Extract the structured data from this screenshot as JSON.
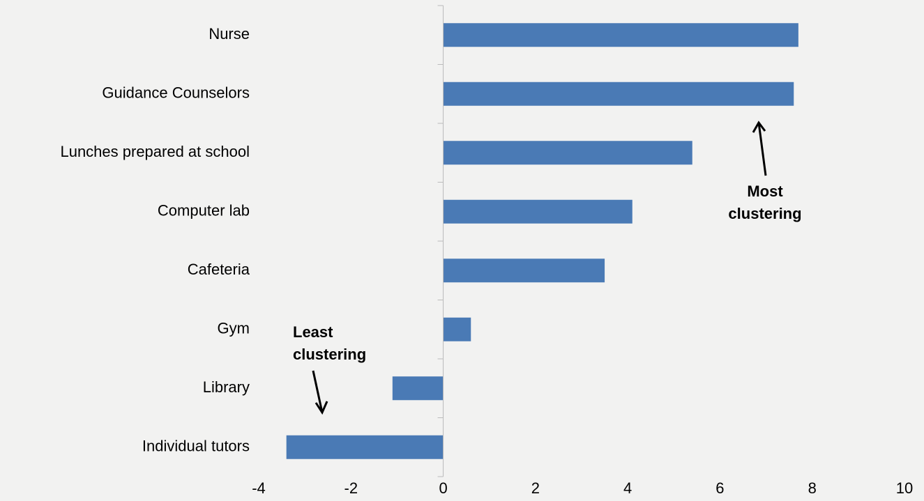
{
  "chart_data": {
    "type": "bar",
    "orientation": "horizontal",
    "categories": [
      "Nurse",
      "Guidance Counselors",
      "Lunches prepared at school",
      "Computer lab",
      "Cafeteria",
      "Gym",
      "Library",
      "Individual tutors"
    ],
    "values": [
      7.7,
      7.6,
      5.4,
      4.1,
      3.5,
      0.6,
      -1.1,
      -3.4
    ],
    "color": "#4a7ab5",
    "xlim": [
      -4,
      10
    ],
    "xticks": [
      -4,
      -2,
      0,
      2,
      4,
      6,
      8,
      10
    ],
    "annotations": [
      {
        "lines": [
          "Most",
          "clustering"
        ]
      },
      {
        "lines": [
          "Least",
          "clustering"
        ]
      }
    ]
  }
}
